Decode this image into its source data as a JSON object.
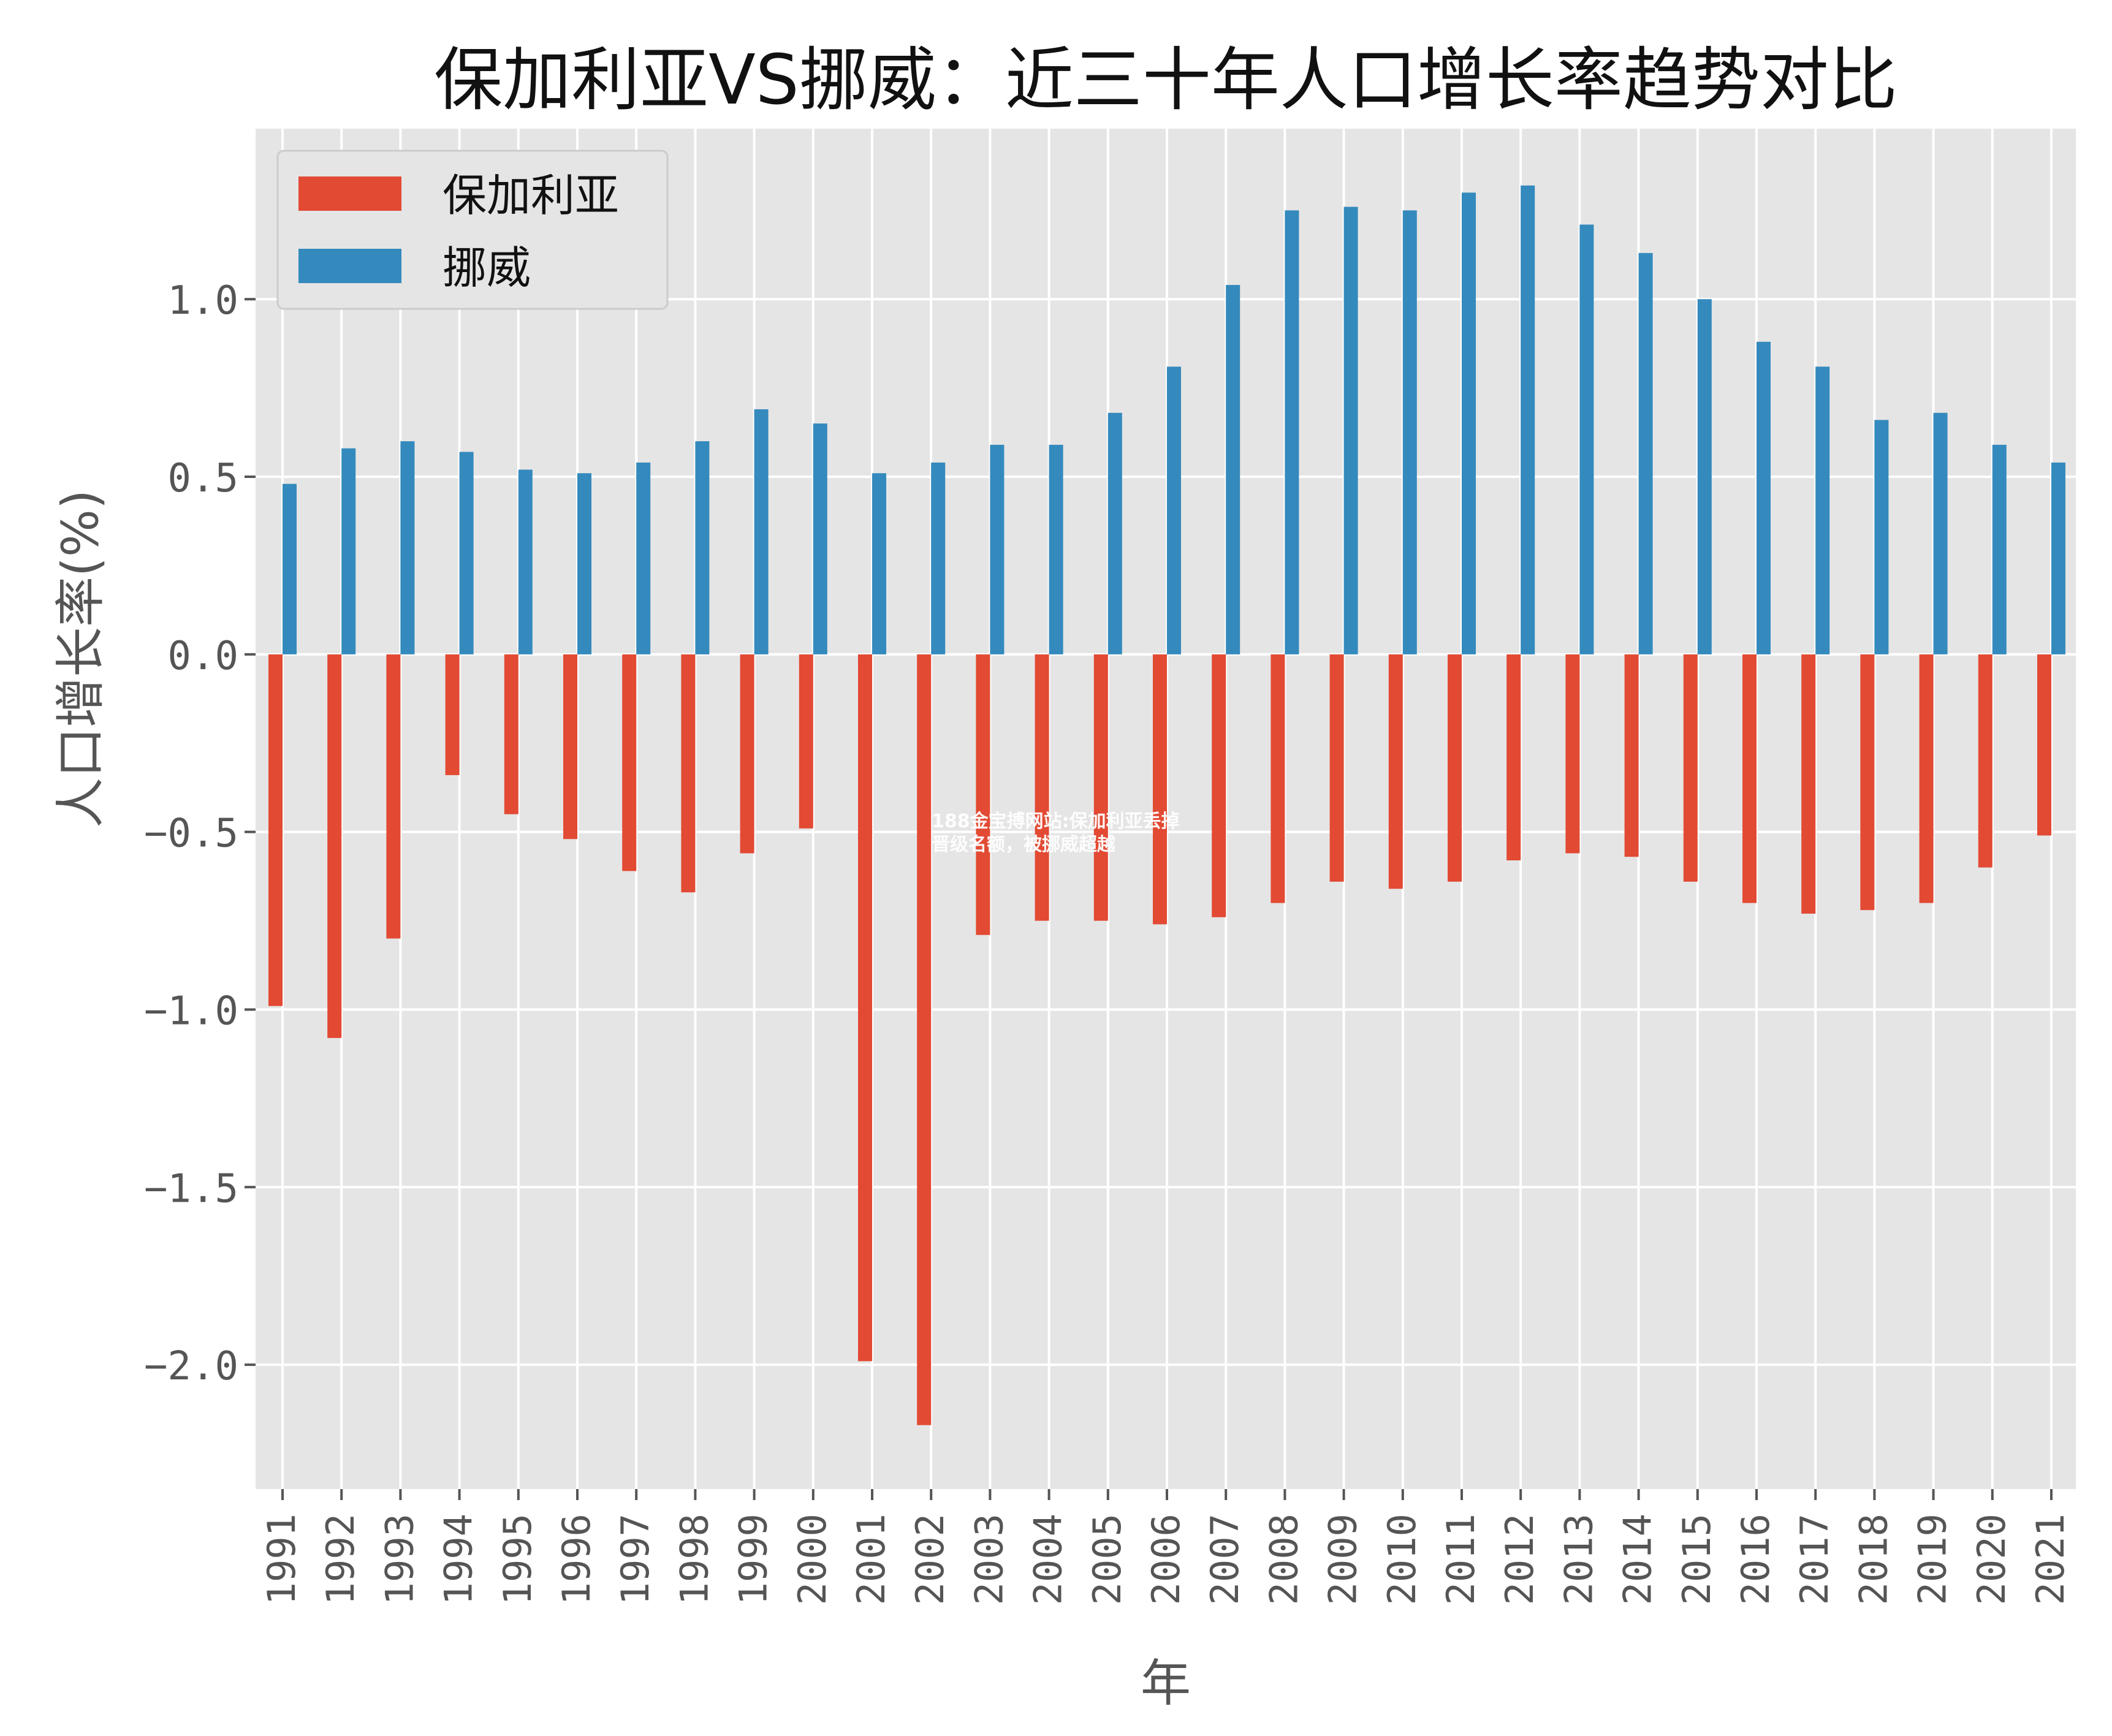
{
  "chart_data": {
    "type": "bar",
    "title": "保加利亚VS挪威：近三十年人口增长率趋势对比",
    "xlabel": "年",
    "ylabel": "人口增长率(%)",
    "ylim": [
      -2.35,
      1.48
    ],
    "yticks": [
      1.0,
      0.5,
      0.0,
      -0.5,
      -1.0,
      -1.5,
      -2.0
    ],
    "ytick_labels": [
      "1.0",
      "0.5",
      "0.0",
      "−0.5",
      "−1.0",
      "−1.5",
      "−2.0"
    ],
    "grid": true,
    "legend_position": "top-left",
    "categories": [
      "1991",
      "1992",
      "1993",
      "1994",
      "1995",
      "1996",
      "1997",
      "1998",
      "1999",
      "2000",
      "2001",
      "2002",
      "2003",
      "2004",
      "2005",
      "2006",
      "2007",
      "2008",
      "2009",
      "2010",
      "2011",
      "2012",
      "2013",
      "2014",
      "2015",
      "2016",
      "2017",
      "2018",
      "2019",
      "2020",
      "2021"
    ],
    "series": [
      {
        "name": "保加利亚",
        "color": "#E24A33",
        "values": [
          -0.99,
          -1.08,
          -0.8,
          -0.34,
          -0.45,
          -0.52,
          -0.61,
          -0.67,
          -0.56,
          -0.49,
          -1.99,
          -2.17,
          -0.79,
          -0.75,
          -0.75,
          -0.76,
          -0.74,
          -0.7,
          -0.64,
          -0.66,
          -0.64,
          -0.58,
          -0.56,
          -0.57,
          -0.64,
          -0.7,
          -0.73,
          -0.72,
          -0.7,
          -0.6,
          -0.51
        ]
      },
      {
        "name": "挪威",
        "color": "#348ABD",
        "values": [
          0.48,
          0.58,
          0.6,
          0.57,
          0.52,
          0.51,
          0.54,
          0.6,
          0.69,
          0.65,
          0.51,
          0.54,
          0.59,
          0.59,
          0.68,
          0.81,
          1.04,
          1.25,
          1.26,
          1.25,
          1.3,
          1.32,
          1.21,
          1.13,
          1.0,
          0.88,
          0.81,
          0.66,
          0.68,
          0.59,
          0.54
        ]
      }
    ]
  },
  "watermark": "188金宝搏网站:保加利亚丢掉晋级名额，被挪威超越"
}
